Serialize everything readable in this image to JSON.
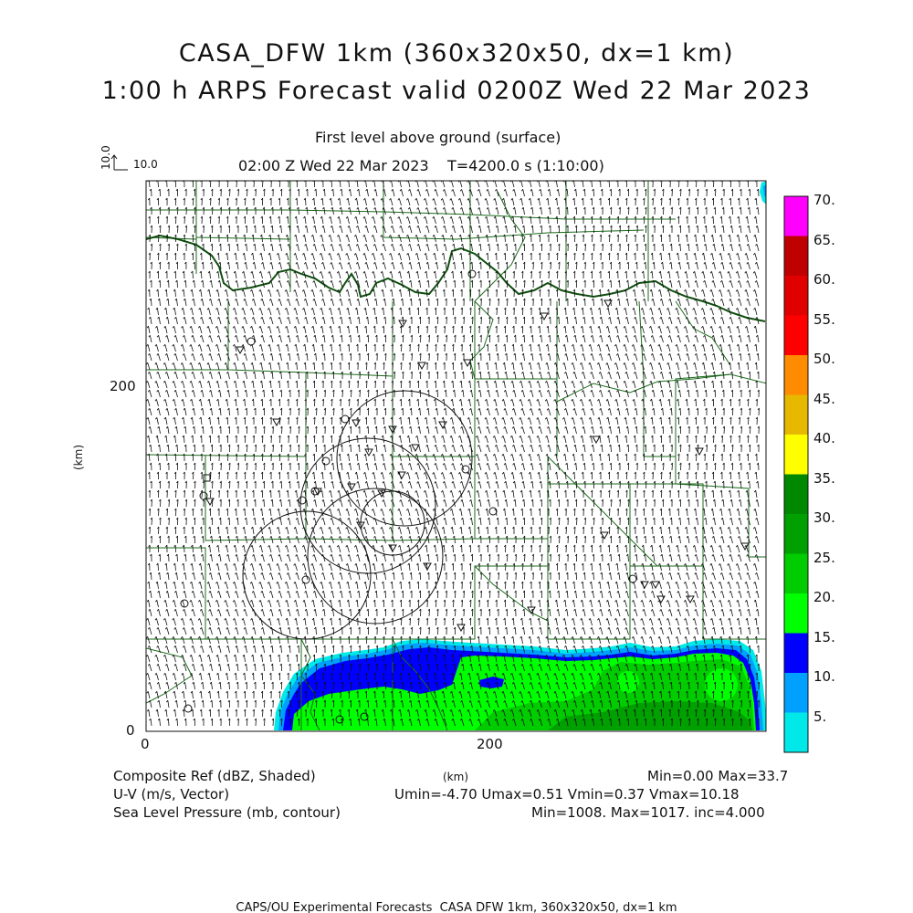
{
  "title": {
    "line1": "CASA_DFW 1km (360x320x50, dx=1 km)",
    "line2": "1:00 h ARPS Forecast valid 0200Z Wed 22 Mar 2023"
  },
  "subtitle": {
    "level": "First level above ground (surface)",
    "time": "02:00 Z Wed 22 Mar 2023    T=4200.0 s (1:10:00)"
  },
  "vector_key": {
    "value": "10.0",
    "label": "10.0"
  },
  "axes": {
    "x_unit": "(km)",
    "y_unit": "(km)",
    "x_ticks": [
      "0",
      "200"
    ],
    "y_ticks": [
      "0",
      "200"
    ]
  },
  "colorbar": {
    "labels": [
      "70.",
      "65.",
      "60.",
      "55.",
      "50.",
      "45.",
      "40.",
      "35.",
      "30.",
      "25.",
      "20.",
      "15.",
      "10.",
      "5."
    ],
    "colors": [
      "#ff00ff",
      "#c00000",
      "#e00000",
      "#ff0000",
      "#ff8c00",
      "#e6b800",
      "#ffff00",
      "#008800",
      "#00a000",
      "#00cc00",
      "#00ff00",
      "#0000ff",
      "#00a0ff",
      "#00e8e8"
    ]
  },
  "legend": {
    "row1_left": "Composite Ref (dBZ, Shaded)",
    "row1_right": "Min=0.00 Max=33.7",
    "row2_left": "U-V (m/s, Vector)",
    "row2_mid": "(km)",
    "row2_right": "Umin=-4.70 Umax=0.51 Vmin=0.37 Vmax=10.18",
    "row3_left": "Sea Level Pressure (mb, contour)",
    "row3_right": "Min=1008. Max=1017. inc=4.000"
  },
  "footer": "CAPS/OU Experimental Forecasts  CASA DFW 1km, 360x320x50, dx=1 km",
  "colors": {
    "boundary": "#1a6b1a",
    "state_line": "#0f4f0f",
    "text": "#111111"
  }
}
